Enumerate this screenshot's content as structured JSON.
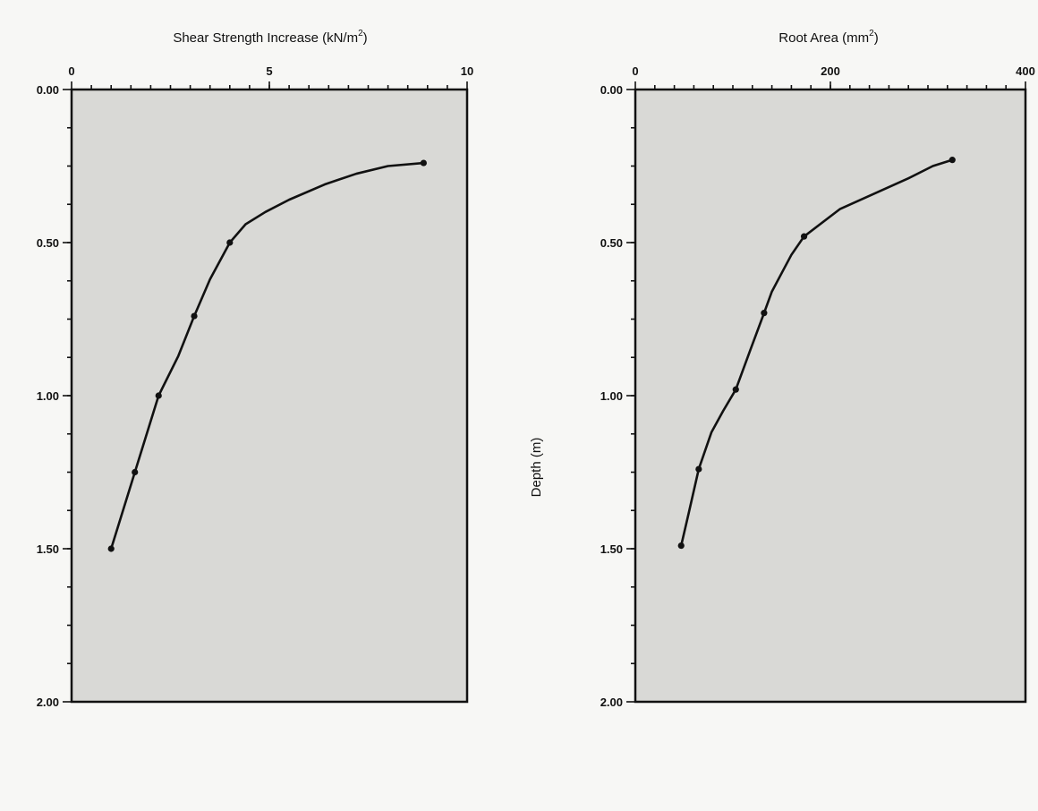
{
  "chart_data": [
    {
      "type": "line",
      "title": "",
      "xlabel": "Shear Strength Increase (kN/m2)",
      "xlabel_main": "Shear Strength Increase (kN/m",
      "xlabel_sup": "2",
      "xlabel_end": ")",
      "ylabel": "",
      "x_axis_position": "top",
      "xlim": [
        0,
        10
      ],
      "ylim": [
        0,
        2.0
      ],
      "y_inverted": true,
      "xticks": [
        0,
        5,
        10
      ],
      "xtick_labels": [
        "0",
        "5",
        "10"
      ],
      "yticks": [
        0,
        0.5,
        1.0,
        1.5,
        2.0
      ],
      "ytick_labels": [
        "0.00",
        "0.50",
        "1.00",
        "1.50",
        "2.00"
      ],
      "grid": false,
      "series": [
        {
          "x": [
            8.9,
            4.0,
            3.1,
            2.2,
            1.6,
            1.0
          ],
          "y": [
            0.24,
            0.5,
            0.74,
            1.0,
            1.25,
            1.5
          ],
          "curve_x": [
            8.9,
            8.0,
            7.2,
            6.4,
            5.5,
            4.9,
            4.4,
            4.0,
            3.5,
            3.1,
            2.7,
            2.2,
            1.6,
            1.0
          ],
          "curve_y": [
            0.24,
            0.25,
            0.275,
            0.31,
            0.36,
            0.4,
            0.44,
            0.5,
            0.62,
            0.74,
            0.87,
            1.0,
            1.25,
            1.5
          ]
        }
      ]
    },
    {
      "type": "line",
      "title": "",
      "xlabel": "Root Area (mm2)",
      "xlabel_main": "Root Area (mm",
      "xlabel_sup": "2",
      "xlabel_end": ")",
      "ylabel": "Depth (m)",
      "x_axis_position": "top",
      "xlim": [
        0,
        400
      ],
      "ylim": [
        0,
        2.0
      ],
      "y_inverted": true,
      "xticks": [
        0,
        200,
        400
      ],
      "xtick_labels": [
        "0",
        "200",
        "400"
      ],
      "yticks": [
        0,
        0.5,
        1.0,
        1.5,
        2.0
      ],
      "ytick_labels": [
        "0.00",
        "0.50",
        "1.00",
        "1.50",
        "2.00"
      ],
      "grid": false,
      "series": [
        {
          "x": [
            325,
            173,
            132,
            103,
            65,
            47
          ],
          "y": [
            0.23,
            0.48,
            0.73,
            0.98,
            1.24,
            1.49
          ],
          "curve_x": [
            325,
            305,
            280,
            245,
            210,
            173,
            160,
            150,
            140,
            132,
            118,
            103,
            90,
            78,
            65,
            55,
            47
          ],
          "curve_y": [
            0.23,
            0.25,
            0.29,
            0.34,
            0.39,
            0.48,
            0.54,
            0.6,
            0.66,
            0.73,
            0.85,
            0.98,
            1.05,
            1.12,
            1.24,
            1.38,
            1.49
          ]
        }
      ]
    }
  ]
}
